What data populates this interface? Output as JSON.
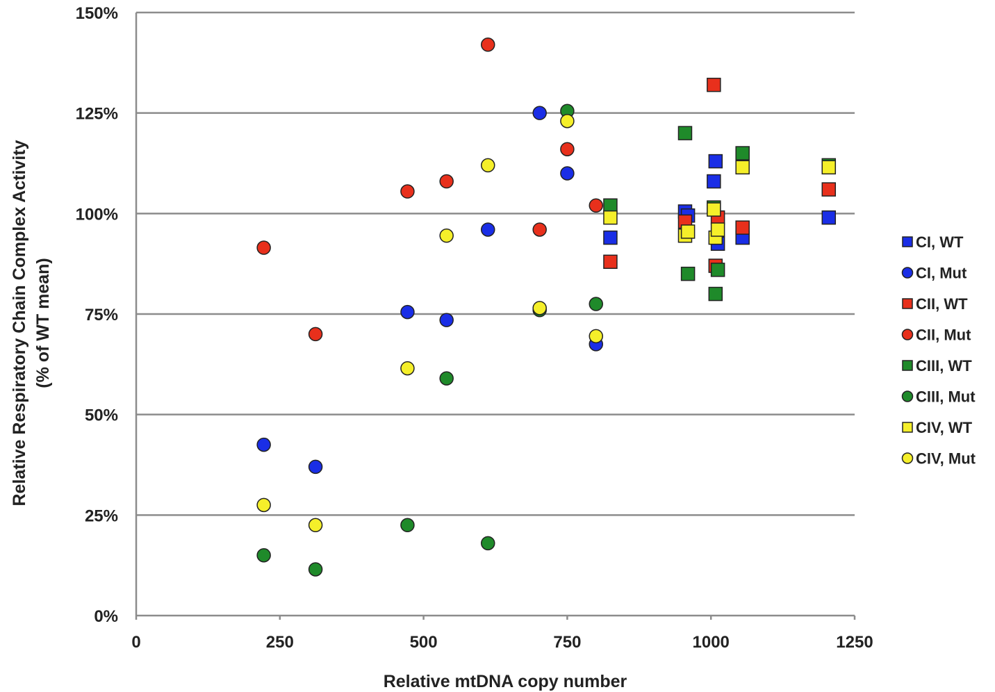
{
  "chart_data": {
    "type": "scatter",
    "xlabel": "Relative mtDNA copy number",
    "ylabel_line1": "Relative Respiratory Chain Complex Activity",
    "ylabel_line2": "(% of WT mean)",
    "xlim": [
      0,
      1250
    ],
    "ylim": [
      0,
      150
    ],
    "x_ticks": [
      0,
      250,
      500,
      750,
      1000,
      1250
    ],
    "x_tick_labels": [
      "0",
      "250",
      "500",
      "750",
      "1000",
      "1250"
    ],
    "y_ticks": [
      0,
      25,
      50,
      75,
      100,
      125,
      150
    ],
    "y_tick_labels": [
      "0%",
      "25%",
      "50%",
      "75%",
      "100%",
      "125%",
      "150%"
    ],
    "grid": "horizontal",
    "legend_position": "right",
    "series": [
      {
        "name": "CI, WT",
        "marker": "square",
        "color": "#1a2ee6",
        "points": [
          [
            825,
            94
          ],
          [
            955,
            100.5
          ],
          [
            960,
            99.5
          ],
          [
            1005,
            108
          ],
          [
            1008,
            113
          ],
          [
            1012,
            92.5
          ],
          [
            1055,
            94
          ],
          [
            1205,
            99
          ]
        ]
      },
      {
        "name": "CI, Mut",
        "marker": "circle",
        "color": "#1a2ee6",
        "points": [
          [
            222,
            42.5
          ],
          [
            312,
            37
          ],
          [
            472,
            75.5
          ],
          [
            540,
            73.5
          ],
          [
            612,
            96
          ],
          [
            702,
            125
          ],
          [
            750,
            110
          ],
          [
            800,
            67.5
          ]
        ]
      },
      {
        "name": "CII, WT",
        "marker": "square",
        "color": "#e8301c",
        "points": [
          [
            825,
            88
          ],
          [
            955,
            98
          ],
          [
            1005,
            132
          ],
          [
            1008,
            87
          ],
          [
            1012,
            99
          ],
          [
            1055,
            96.5
          ],
          [
            1205,
            106
          ]
        ]
      },
      {
        "name": "CII, Mut",
        "marker": "circle",
        "color": "#e8301c",
        "points": [
          [
            222,
            91.5
          ],
          [
            312,
            70
          ],
          [
            472,
            105.5
          ],
          [
            540,
            108
          ],
          [
            612,
            142
          ],
          [
            702,
            96
          ],
          [
            750,
            116
          ],
          [
            800,
            102
          ]
        ]
      },
      {
        "name": "CIII, WT",
        "marker": "square",
        "color": "#1f8a2a",
        "points": [
          [
            825,
            102
          ],
          [
            955,
            120
          ],
          [
            960,
            85
          ],
          [
            1005,
            101.5
          ],
          [
            1008,
            80
          ],
          [
            1012,
            86
          ],
          [
            1055,
            115
          ],
          [
            1205,
            112
          ]
        ]
      },
      {
        "name": "CIII, Mut",
        "marker": "circle",
        "color": "#1f8a2a",
        "points": [
          [
            222,
            15
          ],
          [
            312,
            11.5
          ],
          [
            472,
            22.5
          ],
          [
            540,
            59
          ],
          [
            612,
            18
          ],
          [
            702,
            76
          ],
          [
            750,
            125.5
          ],
          [
            800,
            77.5
          ]
        ]
      },
      {
        "name": "CIV, WT",
        "marker": "square",
        "color": "#f5ef2a",
        "points": [
          [
            825,
            99
          ],
          [
            955,
            94.5
          ],
          [
            960,
            95.5
          ],
          [
            1005,
            101
          ],
          [
            1008,
            94
          ],
          [
            1012,
            96
          ],
          [
            1055,
            111.5
          ],
          [
            1205,
            111.5
          ]
        ]
      },
      {
        "name": "CIV, Mut",
        "marker": "circle",
        "color": "#f5ef2a",
        "points": [
          [
            222,
            27.5
          ],
          [
            312,
            22.5
          ],
          [
            472,
            61.5
          ],
          [
            540,
            94.5
          ],
          [
            612,
            112
          ],
          [
            702,
            76.5
          ],
          [
            750,
            123
          ],
          [
            800,
            69.5
          ]
        ]
      }
    ]
  }
}
